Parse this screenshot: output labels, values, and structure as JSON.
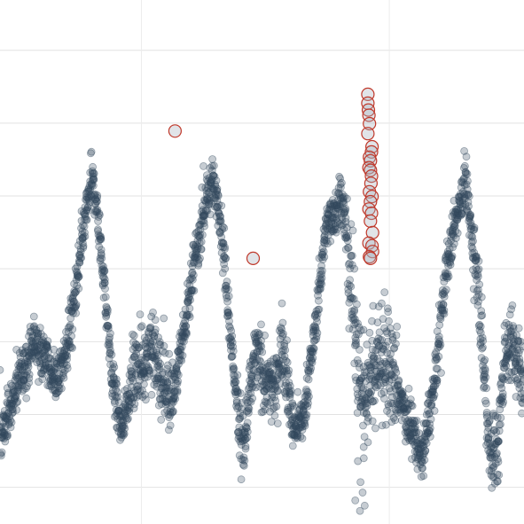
{
  "chart_data": {
    "type": "scatter",
    "title": "",
    "xlabel": "",
    "ylabel": "",
    "xlim": [
      0,
      1000
    ],
    "ylim": [
      0,
      100
    ],
    "grid": true,
    "y_gridlines": [
      7,
      20.9,
      34.8,
      48.7,
      62.6,
      76.5,
      90.4
    ],
    "x_gridlines": [
      270,
      743
    ],
    "colors": {
      "series": "#34495e",
      "anomaly": "#c0392b",
      "grid": "#e2e2e2"
    },
    "series": [
      {
        "role": "observations",
        "shape": "noisy periodic signal (trend knots)",
        "knots": [
          [
            0,
            16
          ],
          [
            25,
            24
          ],
          [
            65,
            35
          ],
          [
            90,
            31
          ],
          [
            105,
            27
          ],
          [
            125,
            32
          ],
          [
            145,
            45
          ],
          [
            175,
            66
          ],
          [
            182,
            63
          ],
          [
            195,
            50
          ],
          [
            215,
            27
          ],
          [
            232,
            18
          ],
          [
            252,
            28
          ],
          [
            268,
            30
          ],
          [
            292,
            34
          ],
          [
            308,
            27
          ],
          [
            330,
            24
          ],
          [
            355,
            40
          ],
          [
            385,
            58
          ],
          [
            405,
            66
          ],
          [
            420,
            59
          ],
          [
            445,
            30
          ],
          [
            465,
            14
          ],
          [
            478,
            26
          ],
          [
            490,
            33
          ],
          [
            505,
            27
          ],
          [
            525,
            25
          ],
          [
            538,
            36
          ],
          [
            560,
            18
          ],
          [
            578,
            20
          ],
          [
            600,
            36
          ],
          [
            622,
            57
          ],
          [
            640,
            60
          ],
          [
            652,
            63
          ],
          [
            665,
            51
          ],
          [
            680,
            36
          ],
          [
            695,
            22
          ],
          [
            705,
            28
          ],
          [
            725,
            33
          ],
          [
            750,
            28
          ],
          [
            770,
            22
          ],
          [
            795,
            16
          ],
          [
            805,
            12
          ],
          [
            830,
            27
          ],
          [
            850,
            48
          ],
          [
            870,
            58
          ],
          [
            888,
            66
          ],
          [
            900,
            55
          ],
          [
            912,
            48
          ],
          [
            925,
            27
          ],
          [
            935,
            14
          ],
          [
            950,
            14
          ],
          [
            962,
            32
          ],
          [
            977,
            35
          ],
          [
            990,
            30
          ],
          [
            1000,
            25
          ]
        ]
      },
      {
        "role": "anomalies",
        "points": [
          [
            334,
            75
          ],
          [
            483,
            50.7
          ],
          [
            702,
            82
          ],
          [
            702,
            80.3
          ],
          [
            703,
            79
          ],
          [
            704,
            78
          ],
          [
            705,
            76.4
          ],
          [
            702,
            74.5
          ],
          [
            710,
            72
          ],
          [
            709,
            71
          ],
          [
            705,
            70
          ],
          [
            707,
            69.3
          ],
          [
            704,
            68
          ],
          [
            707,
            67.5
          ],
          [
            709,
            66.4
          ],
          [
            708,
            65
          ],
          [
            705,
            63.4
          ],
          [
            710,
            62.5
          ],
          [
            707,
            61.5
          ],
          [
            704,
            60.1
          ],
          [
            709,
            59.3
          ],
          [
            707,
            57.8
          ],
          [
            711,
            55.6
          ],
          [
            704,
            53.6
          ],
          [
            710,
            53.1
          ],
          [
            711,
            52
          ],
          [
            705,
            51
          ],
          [
            707,
            50.7
          ]
        ]
      }
    ]
  }
}
